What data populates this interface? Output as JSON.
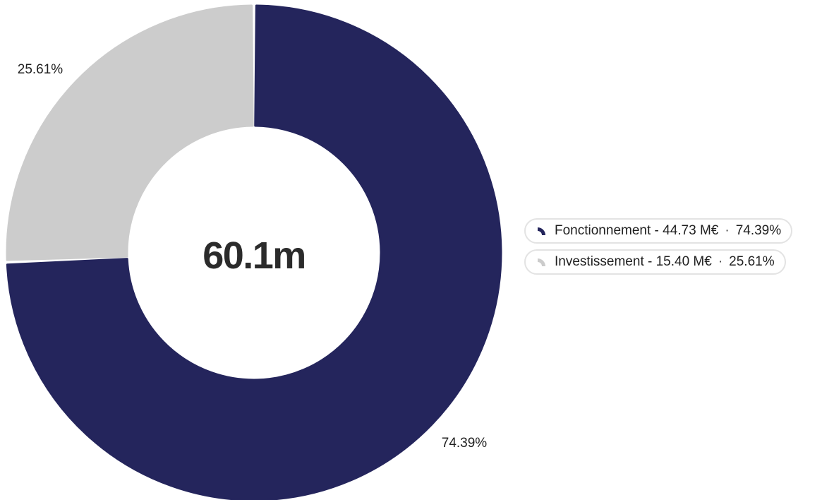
{
  "chart_data": {
    "type": "pie",
    "center_label": "60.1m",
    "slices": [
      {
        "name": "Fonctionnement",
        "amount": "44.73 M€",
        "value": 44.73,
        "percent": 74.39,
        "percent_label": "74.39%",
        "color": "#24255c"
      },
      {
        "name": "Investissement",
        "amount": "15.40 M€",
        "value": 15.4,
        "percent": 25.61,
        "percent_label": "25.61%",
        "color": "#cccccc"
      }
    ],
    "legend": [
      {
        "name": "Fonctionnement",
        "amount": "44.73 M€",
        "percent": "74.39%",
        "label": "Fonctionnement - 44.73 M€"
      },
      {
        "name": "Investissement",
        "amount": "15.40 M€",
        "percent": "25.61%",
        "label": "Investissement - 15.40 M€"
      }
    ],
    "legend_position": "right",
    "separator": "·"
  }
}
